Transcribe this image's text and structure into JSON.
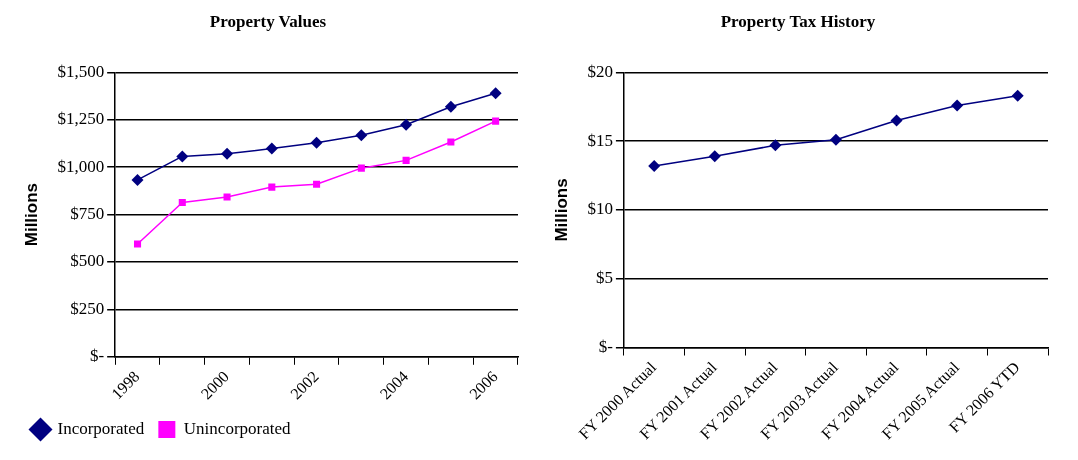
{
  "chart_data": [
    {
      "type": "line",
      "title": "Property Values",
      "ylabel": "Millions",
      "categories": [
        "1998",
        null,
        "2000",
        null,
        "2002",
        null,
        "2004",
        null,
        "2006"
      ],
      "series": [
        {
          "name": "Incorporated",
          "color": "#000080",
          "marker": "diamond",
          "values": [
            933,
            1057,
            1071,
            1098,
            1129,
            1169,
            1224,
            1319,
            1390
          ]
        },
        {
          "name": "Unincorporated",
          "color": "#ff00ff",
          "marker": "square",
          "values": [
            595,
            814,
            843,
            895,
            910,
            995,
            1036,
            1133,
            1243
          ]
        }
      ],
      "ylim": [
        0,
        1500
      ],
      "yticks": [
        {
          "value": 0,
          "label": "$-"
        },
        {
          "value": 250,
          "label": "$250"
        },
        {
          "value": 500,
          "label": "$500"
        },
        {
          "value": 750,
          "label": "$750"
        },
        {
          "value": 1000,
          "label": "$1,000"
        },
        {
          "value": 1250,
          "label": "$1,250"
        },
        {
          "value": 1500,
          "label": "$1,500"
        }
      ],
      "grid": "y",
      "legend": "bottom"
    },
    {
      "type": "line",
      "title": "Property Tax History",
      "ylabel": "Millions",
      "categories": [
        "FY 2000 Actual",
        "FY 2001 Actual",
        "FY 2002 Actual",
        "FY 2003 Actual",
        "FY 2004 Actual",
        "FY 2005 Actual",
        "FY 2006 YTD"
      ],
      "series": [
        {
          "color": "#000080",
          "marker": "diamond",
          "values": [
            13.2,
            13.9,
            14.7,
            15.1,
            16.5,
            17.6,
            18.3
          ]
        }
      ],
      "ylim": [
        0,
        20
      ],
      "yticks": [
        {
          "value": 0,
          "label": "$-"
        },
        {
          "value": 5,
          "label": "$5"
        },
        {
          "value": 10,
          "label": "$10"
        },
        {
          "value": 15,
          "label": "$15"
        },
        {
          "value": 20,
          "label": "$20"
        }
      ],
      "grid": "y",
      "legend": false
    }
  ]
}
